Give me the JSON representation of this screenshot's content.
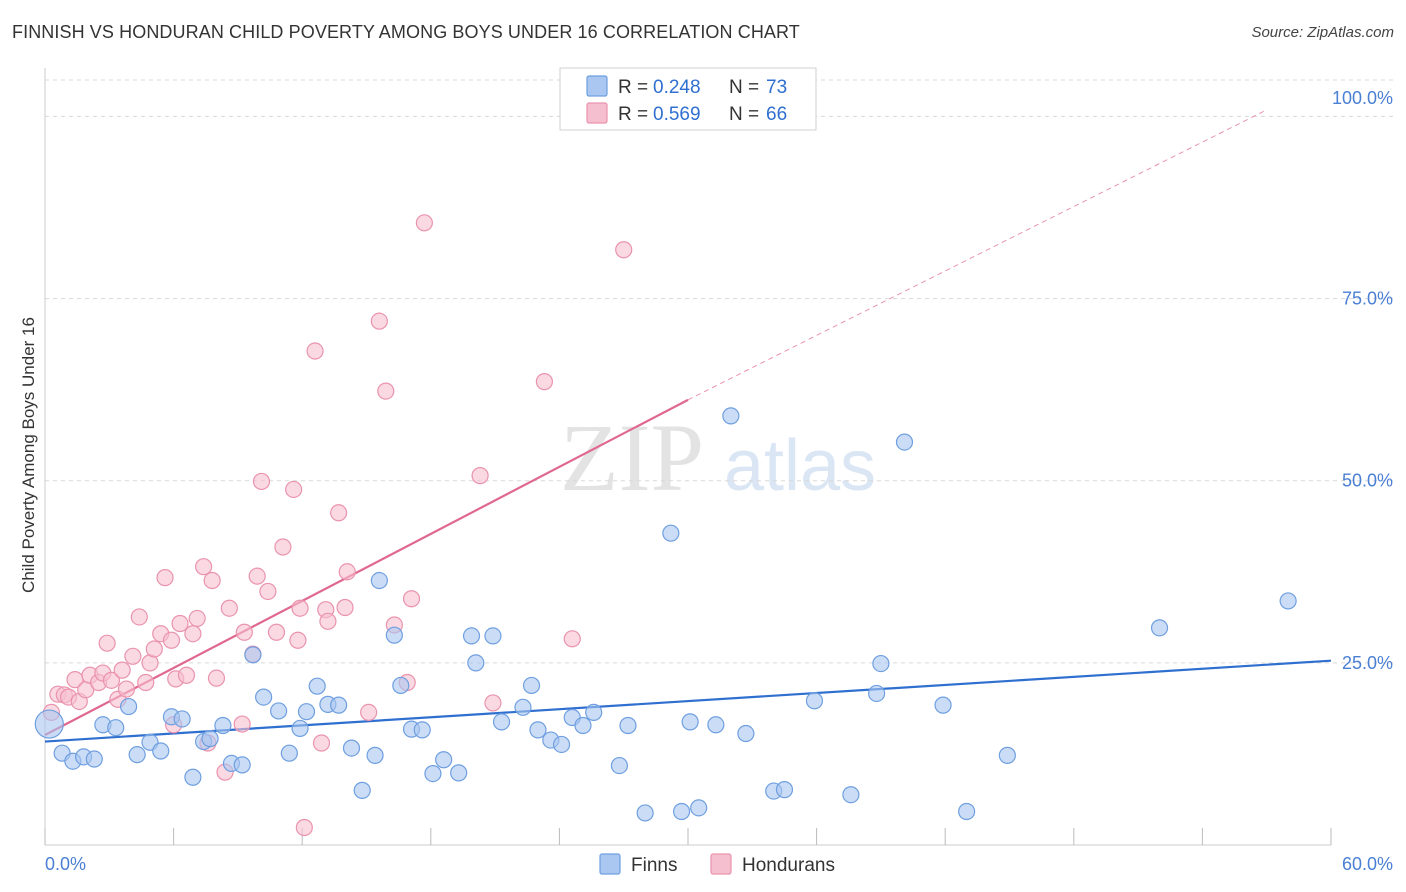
{
  "title": "FINNISH VS HONDURAN CHILD POVERTY AMONG BOYS UNDER 16 CORRELATION CHART",
  "source": "Source: ZipAtlas.com",
  "watermark": {
    "zip": "ZIP",
    "atlas": "atlas"
  },
  "colors": {
    "finns_fill": "#a9c7f0",
    "finns_stroke": "#6f9fe0",
    "finns_line": "#2f6fd0",
    "hond_fill": "#f6bfd0",
    "hond_stroke": "#ea93ae",
    "hond_line": "#e06890",
    "grid": "#d8d8d8",
    "tick_text": "#4a7fd4"
  },
  "legend": {
    "r_label": "R =",
    "n_label": "N =",
    "rows": [
      {
        "r": "0.248",
        "n": "73"
      },
      {
        "r": "0.569",
        "n": "66"
      }
    ]
  },
  "chart_data": {
    "type": "scatter",
    "title": "FINNISH VS HONDURAN CHILD POVERTY AMONG BOYS UNDER 16 CORRELATION CHART",
    "xlabel": "",
    "ylabel": "Child Poverty Among Boys Under 16",
    "xlim": [
      0,
      60
    ],
    "ylim": [
      0,
      105
    ],
    "x_tick_labels": [
      "0.0%",
      "60.0%"
    ],
    "y_ticks": [
      25,
      50,
      75,
      100
    ],
    "y_tick_labels": [
      "25.0%",
      "50.0%",
      "75.0%",
      "100.0%"
    ],
    "grid": true,
    "legend_position": "top-center",
    "series": [
      {
        "name": "Finns",
        "r": 0.248,
        "n": 73,
        "trend": {
          "x": [
            0,
            60
          ],
          "y": [
            14.2,
            25.3
          ],
          "style": "solid"
        },
        "points": [
          [
            0.2,
            16.6
          ],
          [
            0.8,
            12.6
          ],
          [
            1.3,
            11.5
          ],
          [
            1.8,
            12.1
          ],
          [
            2.3,
            11.8
          ],
          [
            2.7,
            16.5
          ],
          [
            3.3,
            16.1
          ],
          [
            3.9,
            19.0
          ],
          [
            4.3,
            12.4
          ],
          [
            4.9,
            14.1
          ],
          [
            5.4,
            12.9
          ],
          [
            5.9,
            17.6
          ],
          [
            6.4,
            17.3
          ],
          [
            6.9,
            9.3
          ],
          [
            7.4,
            14.2
          ],
          [
            7.7,
            14.6
          ],
          [
            8.3,
            16.4
          ],
          [
            8.7,
            11.2
          ],
          [
            9.2,
            11.0
          ],
          [
            9.7,
            26.1
          ],
          [
            10.2,
            20.3
          ],
          [
            10.9,
            18.4
          ],
          [
            11.4,
            12.6
          ],
          [
            11.9,
            16.0
          ],
          [
            12.2,
            18.3
          ],
          [
            12.7,
            21.8
          ],
          [
            13.2,
            19.3
          ],
          [
            13.7,
            19.2
          ],
          [
            14.3,
            13.3
          ],
          [
            14.8,
            7.5
          ],
          [
            15.4,
            12.3
          ],
          [
            15.6,
            36.3
          ],
          [
            16.3,
            28.8
          ],
          [
            16.6,
            21.9
          ],
          [
            17.1,
            15.9
          ],
          [
            17.6,
            15.8
          ],
          [
            18.1,
            9.8
          ],
          [
            18.6,
            11.7
          ],
          [
            19.3,
            9.9
          ],
          [
            19.9,
            28.7
          ],
          [
            20.1,
            25.0
          ],
          [
            20.9,
            28.7
          ],
          [
            21.3,
            16.9
          ],
          [
            22.3,
            18.9
          ],
          [
            22.7,
            21.9
          ],
          [
            23.0,
            15.8
          ],
          [
            23.6,
            14.4
          ],
          [
            24.1,
            13.8
          ],
          [
            24.6,
            17.5
          ],
          [
            25.1,
            16.4
          ],
          [
            25.6,
            18.2
          ],
          [
            26.8,
            10.9
          ],
          [
            27.2,
            16.4
          ],
          [
            28.0,
            4.4
          ],
          [
            29.2,
            42.8
          ],
          [
            29.7,
            4.6
          ],
          [
            30.1,
            16.9
          ],
          [
            30.5,
            5.1
          ],
          [
            31.3,
            16.5
          ],
          [
            32.0,
            58.9
          ],
          [
            32.7,
            15.3
          ],
          [
            34.0,
            7.4
          ],
          [
            34.5,
            7.6
          ],
          [
            35.9,
            19.8
          ],
          [
            37.6,
            6.9
          ],
          [
            38.8,
            20.8
          ],
          [
            39.0,
            24.9
          ],
          [
            40.1,
            55.3
          ],
          [
            41.9,
            19.2
          ],
          [
            43.0,
            4.6
          ],
          [
            44.9,
            12.3
          ],
          [
            52.0,
            29.8
          ],
          [
            58.0,
            33.5
          ]
        ]
      },
      {
        "name": "Hondurans",
        "r": 0.569,
        "n": 66,
        "trend": {
          "x": [
            0,
            30
          ],
          "y": [
            15.1,
            61.1
          ],
          "style": "solid"
        },
        "trend_extension": {
          "x": [
            30,
            57
          ],
          "y": [
            61.1,
            100.9
          ],
          "style": "dashed"
        },
        "points": [
          [
            0.3,
            18.2
          ],
          [
            0.6,
            20.7
          ],
          [
            0.9,
            20.6
          ],
          [
            1.1,
            20.3
          ],
          [
            1.4,
            22.7
          ],
          [
            1.6,
            19.7
          ],
          [
            1.9,
            21.3
          ],
          [
            2.1,
            23.3
          ],
          [
            2.5,
            22.3
          ],
          [
            2.7,
            23.6
          ],
          [
            2.9,
            27.7
          ],
          [
            3.1,
            22.6
          ],
          [
            3.4,
            20.0
          ],
          [
            3.6,
            24.0
          ],
          [
            3.8,
            21.4
          ],
          [
            4.1,
            25.9
          ],
          [
            4.4,
            31.3
          ],
          [
            4.7,
            22.3
          ],
          [
            4.9,
            25.0
          ],
          [
            5.1,
            26.9
          ],
          [
            5.4,
            29.0
          ],
          [
            5.6,
            36.7
          ],
          [
            5.9,
            28.1
          ],
          [
            6.1,
            22.8
          ],
          [
            6.3,
            30.4
          ],
          [
            6.6,
            23.3
          ],
          [
            6.9,
            29.0
          ],
          [
            7.1,
            31.1
          ],
          [
            7.4,
            38.2
          ],
          [
            7.6,
            14.0
          ],
          [
            7.8,
            36.3
          ],
          [
            8.0,
            22.9
          ],
          [
            8.4,
            10.0
          ],
          [
            8.6,
            32.5
          ],
          [
            9.2,
            16.6
          ],
          [
            9.3,
            29.2
          ],
          [
            9.7,
            26.2
          ],
          [
            9.9,
            36.9
          ],
          [
            10.1,
            49.9
          ],
          [
            10.4,
            34.8
          ],
          [
            10.8,
            29.2
          ],
          [
            11.1,
            40.9
          ],
          [
            11.6,
            48.8
          ],
          [
            11.8,
            28.1
          ],
          [
            11.9,
            32.5
          ],
          [
            12.1,
            2.4
          ],
          [
            12.6,
            67.8
          ],
          [
            12.9,
            14.0
          ],
          [
            13.1,
            32.3
          ],
          [
            13.2,
            30.7
          ],
          [
            13.7,
            45.6
          ],
          [
            14.0,
            32.6
          ],
          [
            14.1,
            37.5
          ],
          [
            15.1,
            18.2
          ],
          [
            15.6,
            71.9
          ],
          [
            15.9,
            62.3
          ],
          [
            16.3,
            30.2
          ],
          [
            16.9,
            22.3
          ],
          [
            17.1,
            33.8
          ],
          [
            17.7,
            85.4
          ],
          [
            20.3,
            50.7
          ],
          [
            20.9,
            19.5
          ],
          [
            23.3,
            63.6
          ],
          [
            24.6,
            28.3
          ],
          [
            27.0,
            81.7
          ],
          [
            6.0,
            16.5
          ]
        ]
      }
    ]
  },
  "bottom_legend": [
    "Finns",
    "Hondurans"
  ]
}
